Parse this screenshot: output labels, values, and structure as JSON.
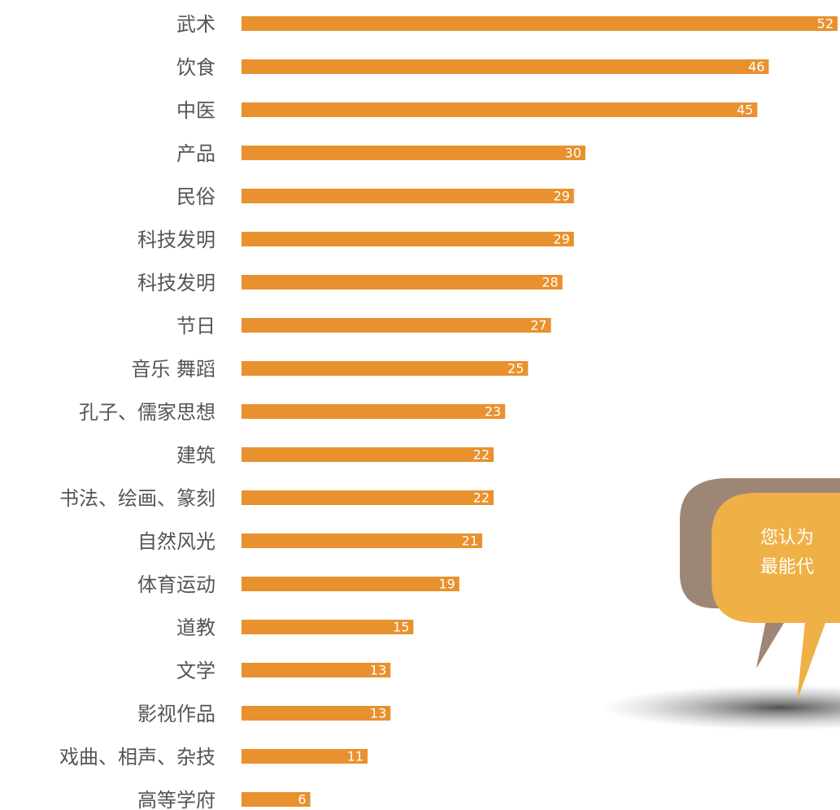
{
  "chart_data": {
    "type": "bar",
    "orientation": "horizontal",
    "color": "#e8912e",
    "categories": [
      "武术",
      "饮食",
      "中医",
      "产品",
      "民俗",
      "科技发明",
      "科技发明",
      "节日",
      "音乐 舞蹈",
      "孔子、儒家思想",
      "建筑",
      "书法、绘画、篆刻",
      "自然风光",
      "体育运动",
      "道教",
      "文学",
      "影视作品",
      "戏曲、相声、杂技",
      "高等学府"
    ],
    "values": [
      52,
      46,
      45,
      30,
      29,
      29,
      28,
      27,
      25,
      23,
      22,
      22,
      21,
      19,
      15,
      13,
      13,
      11,
      6
    ],
    "annotations": [
      "您认为",
      "最能代"
    ]
  }
}
